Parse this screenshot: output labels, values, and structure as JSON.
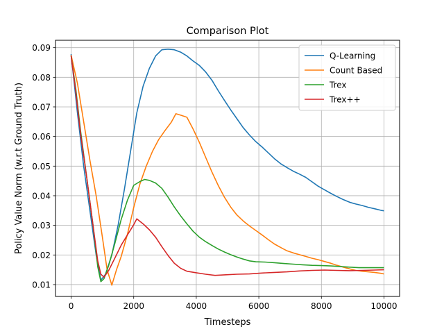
{
  "chart_data": {
    "type": "line",
    "title": "Comparison Plot",
    "xlabel": "Timesteps",
    "ylabel": "Policy Value Norm (w.r.t Ground Truth)",
    "xlim": [
      -500,
      10500
    ],
    "ylim": [
      0.006,
      0.0925
    ],
    "xticks": [
      0,
      2000,
      4000,
      6000,
      8000,
      10000
    ],
    "xtick_labels": [
      "0",
      "2000",
      "4000",
      "6000",
      "8000",
      "10000"
    ],
    "yticks": [
      0.01,
      0.02,
      0.03,
      0.04,
      0.05,
      0.06,
      0.07,
      0.08,
      0.09
    ],
    "ytick_labels": [
      "0.01",
      "0.02",
      "0.03",
      "0.04",
      "0.05",
      "0.06",
      "0.07",
      "0.08",
      "0.09"
    ],
    "grid": true,
    "legend_position": "upper right",
    "series": [
      {
        "name": "Q-Learning",
        "color": "#1f77b4",
        "points": [
          [
            0,
            0.0878
          ],
          [
            200,
            0.068
          ],
          [
            400,
            0.05
          ],
          [
            600,
            0.035
          ],
          [
            800,
            0.02
          ],
          [
            950,
            0.0115
          ],
          [
            1100,
            0.0135
          ],
          [
            1300,
            0.02
          ],
          [
            1500,
            0.03
          ],
          [
            1700,
            0.042
          ],
          [
            1900,
            0.055
          ],
          [
            2100,
            0.068
          ],
          [
            2300,
            0.077
          ],
          [
            2500,
            0.083
          ],
          [
            2700,
            0.0872
          ],
          [
            2900,
            0.0893
          ],
          [
            3100,
            0.0895
          ],
          [
            3300,
            0.0893
          ],
          [
            3500,
            0.0885
          ],
          [
            3700,
            0.0872
          ],
          [
            3900,
            0.0855
          ],
          [
            4100,
            0.084
          ],
          [
            4300,
            0.0818
          ],
          [
            4500,
            0.079
          ],
          [
            4700,
            0.0755
          ],
          [
            4900,
            0.0722
          ],
          [
            5100,
            0.069
          ],
          [
            5300,
            0.066
          ],
          [
            5500,
            0.063
          ],
          [
            5700,
            0.0605
          ],
          [
            5900,
            0.0583
          ],
          [
            6100,
            0.0565
          ],
          [
            6300,
            0.0545
          ],
          [
            6500,
            0.0525
          ],
          [
            6700,
            0.0508
          ],
          [
            6900,
            0.0495
          ],
          [
            7100,
            0.0483
          ],
          [
            7300,
            0.0473
          ],
          [
            7500,
            0.0462
          ],
          [
            7700,
            0.0447
          ],
          [
            7900,
            0.0432
          ],
          [
            8100,
            0.042
          ],
          [
            8300,
            0.0408
          ],
          [
            8500,
            0.0397
          ],
          [
            8700,
            0.0387
          ],
          [
            8900,
            0.0378
          ],
          [
            9100,
            0.0372
          ],
          [
            9300,
            0.0367
          ],
          [
            9500,
            0.0361
          ],
          [
            9700,
            0.0356
          ],
          [
            9900,
            0.0351
          ],
          [
            10000,
            0.0349
          ]
        ]
      },
      {
        "name": "Count Based",
        "color": "#ff7f0e",
        "points": [
          [
            0,
            0.0875
          ],
          [
            200,
            0.078
          ],
          [
            400,
            0.065
          ],
          [
            600,
            0.052
          ],
          [
            800,
            0.04
          ],
          [
            1000,
            0.026
          ],
          [
            1150,
            0.015
          ],
          [
            1300,
            0.0098
          ],
          [
            1450,
            0.015
          ],
          [
            1600,
            0.0195
          ],
          [
            1800,
            0.027
          ],
          [
            2000,
            0.036
          ],
          [
            2200,
            0.044
          ],
          [
            2400,
            0.05
          ],
          [
            2600,
            0.055
          ],
          [
            2800,
            0.059
          ],
          [
            3000,
            0.062
          ],
          [
            3200,
            0.0648
          ],
          [
            3350,
            0.0677
          ],
          [
            3500,
            0.0672
          ],
          [
            3700,
            0.0665
          ],
          [
            3900,
            0.0625
          ],
          [
            4100,
            0.058
          ],
          [
            4300,
            0.053
          ],
          [
            4500,
            0.048
          ],
          [
            4700,
            0.0435
          ],
          [
            4900,
            0.0395
          ],
          [
            5100,
            0.0362
          ],
          [
            5300,
            0.0335
          ],
          [
            5500,
            0.0315
          ],
          [
            5700,
            0.0298
          ],
          [
            5900,
            0.0283
          ],
          [
            6100,
            0.0268
          ],
          [
            6300,
            0.0252
          ],
          [
            6500,
            0.0237
          ],
          [
            6700,
            0.0225
          ],
          [
            6900,
            0.0214
          ],
          [
            7100,
            0.0207
          ],
          [
            7300,
            0.0201
          ],
          [
            7500,
            0.0195
          ],
          [
            7700,
            0.0189
          ],
          [
            7900,
            0.0184
          ],
          [
            8100,
            0.0178
          ],
          [
            8300,
            0.0172
          ],
          [
            8500,
            0.0165
          ],
          [
            8700,
            0.0159
          ],
          [
            8900,
            0.0153
          ],
          [
            9100,
            0.0148
          ],
          [
            9300,
            0.0145
          ],
          [
            9500,
            0.0143
          ],
          [
            9700,
            0.0141
          ],
          [
            9900,
            0.0138
          ],
          [
            10000,
            0.0136
          ]
        ]
      },
      {
        "name": "Trex",
        "color": "#2ca02c",
        "points": [
          [
            0,
            0.0873
          ],
          [
            150,
            0.076
          ],
          [
            300,
            0.062
          ],
          [
            500,
            0.046
          ],
          [
            700,
            0.03
          ],
          [
            850,
            0.016
          ],
          [
            950,
            0.011
          ],
          [
            1050,
            0.012
          ],
          [
            1200,
            0.0165
          ],
          [
            1400,
            0.024
          ],
          [
            1600,
            0.032
          ],
          [
            1800,
            0.0385
          ],
          [
            2000,
            0.0435
          ],
          [
            2200,
            0.0448
          ],
          [
            2350,
            0.0455
          ],
          [
            2500,
            0.0452
          ],
          [
            2700,
            0.0443
          ],
          [
            2900,
            0.0425
          ],
          [
            3100,
            0.0395
          ],
          [
            3300,
            0.0362
          ],
          [
            3500,
            0.0332
          ],
          [
            3700,
            0.0305
          ],
          [
            3900,
            0.028
          ],
          [
            4100,
            0.026
          ],
          [
            4300,
            0.0245
          ],
          [
            4500,
            0.0232
          ],
          [
            4700,
            0.022
          ],
          [
            4900,
            0.021
          ],
          [
            5100,
            0.0201
          ],
          [
            5300,
            0.0193
          ],
          [
            5500,
            0.0186
          ],
          [
            5700,
            0.018
          ],
          [
            5900,
            0.0177
          ],
          [
            6200,
            0.0176
          ],
          [
            6500,
            0.0174
          ],
          [
            6800,
            0.0171
          ],
          [
            7100,
            0.0169
          ],
          [
            7400,
            0.0167
          ],
          [
            7700,
            0.0165
          ],
          [
            8000,
            0.0164
          ],
          [
            8300,
            0.0163
          ],
          [
            8600,
            0.0161
          ],
          [
            8900,
            0.0159
          ],
          [
            9200,
            0.0157
          ],
          [
            9500,
            0.0157
          ],
          [
            9800,
            0.0157
          ],
          [
            10000,
            0.0157
          ]
        ]
      },
      {
        "name": "Trex++",
        "color": "#d62728",
        "points": [
          [
            0,
            0.0873
          ],
          [
            150,
            0.075
          ],
          [
            300,
            0.061
          ],
          [
            500,
            0.046
          ],
          [
            700,
            0.03
          ],
          [
            850,
            0.018
          ],
          [
            950,
            0.0135
          ],
          [
            1050,
            0.0125
          ],
          [
            1200,
            0.0148
          ],
          [
            1400,
            0.019
          ],
          [
            1600,
            0.0233
          ],
          [
            1800,
            0.0268
          ],
          [
            2000,
            0.0302
          ],
          [
            2100,
            0.0322
          ],
          [
            2300,
            0.0305
          ],
          [
            2500,
            0.0285
          ],
          [
            2700,
            0.026
          ],
          [
            2900,
            0.0228
          ],
          [
            3100,
            0.0198
          ],
          [
            3300,
            0.0172
          ],
          [
            3500,
            0.0155
          ],
          [
            3700,
            0.0145
          ],
          [
            4000,
            0.014
          ],
          [
            4300,
            0.0135
          ],
          [
            4600,
            0.0131
          ],
          [
            4900,
            0.0133
          ],
          [
            5300,
            0.0135
          ],
          [
            5700,
            0.0136
          ],
          [
            6100,
            0.0139
          ],
          [
            6500,
            0.0141
          ],
          [
            6900,
            0.0143
          ],
          [
            7300,
            0.0146
          ],
          [
            7700,
            0.0148
          ],
          [
            8100,
            0.0149
          ],
          [
            8500,
            0.0148
          ],
          [
            8900,
            0.0147
          ],
          [
            9300,
            0.0148
          ],
          [
            9700,
            0.0149
          ],
          [
            10000,
            0.015
          ]
        ]
      }
    ]
  }
}
